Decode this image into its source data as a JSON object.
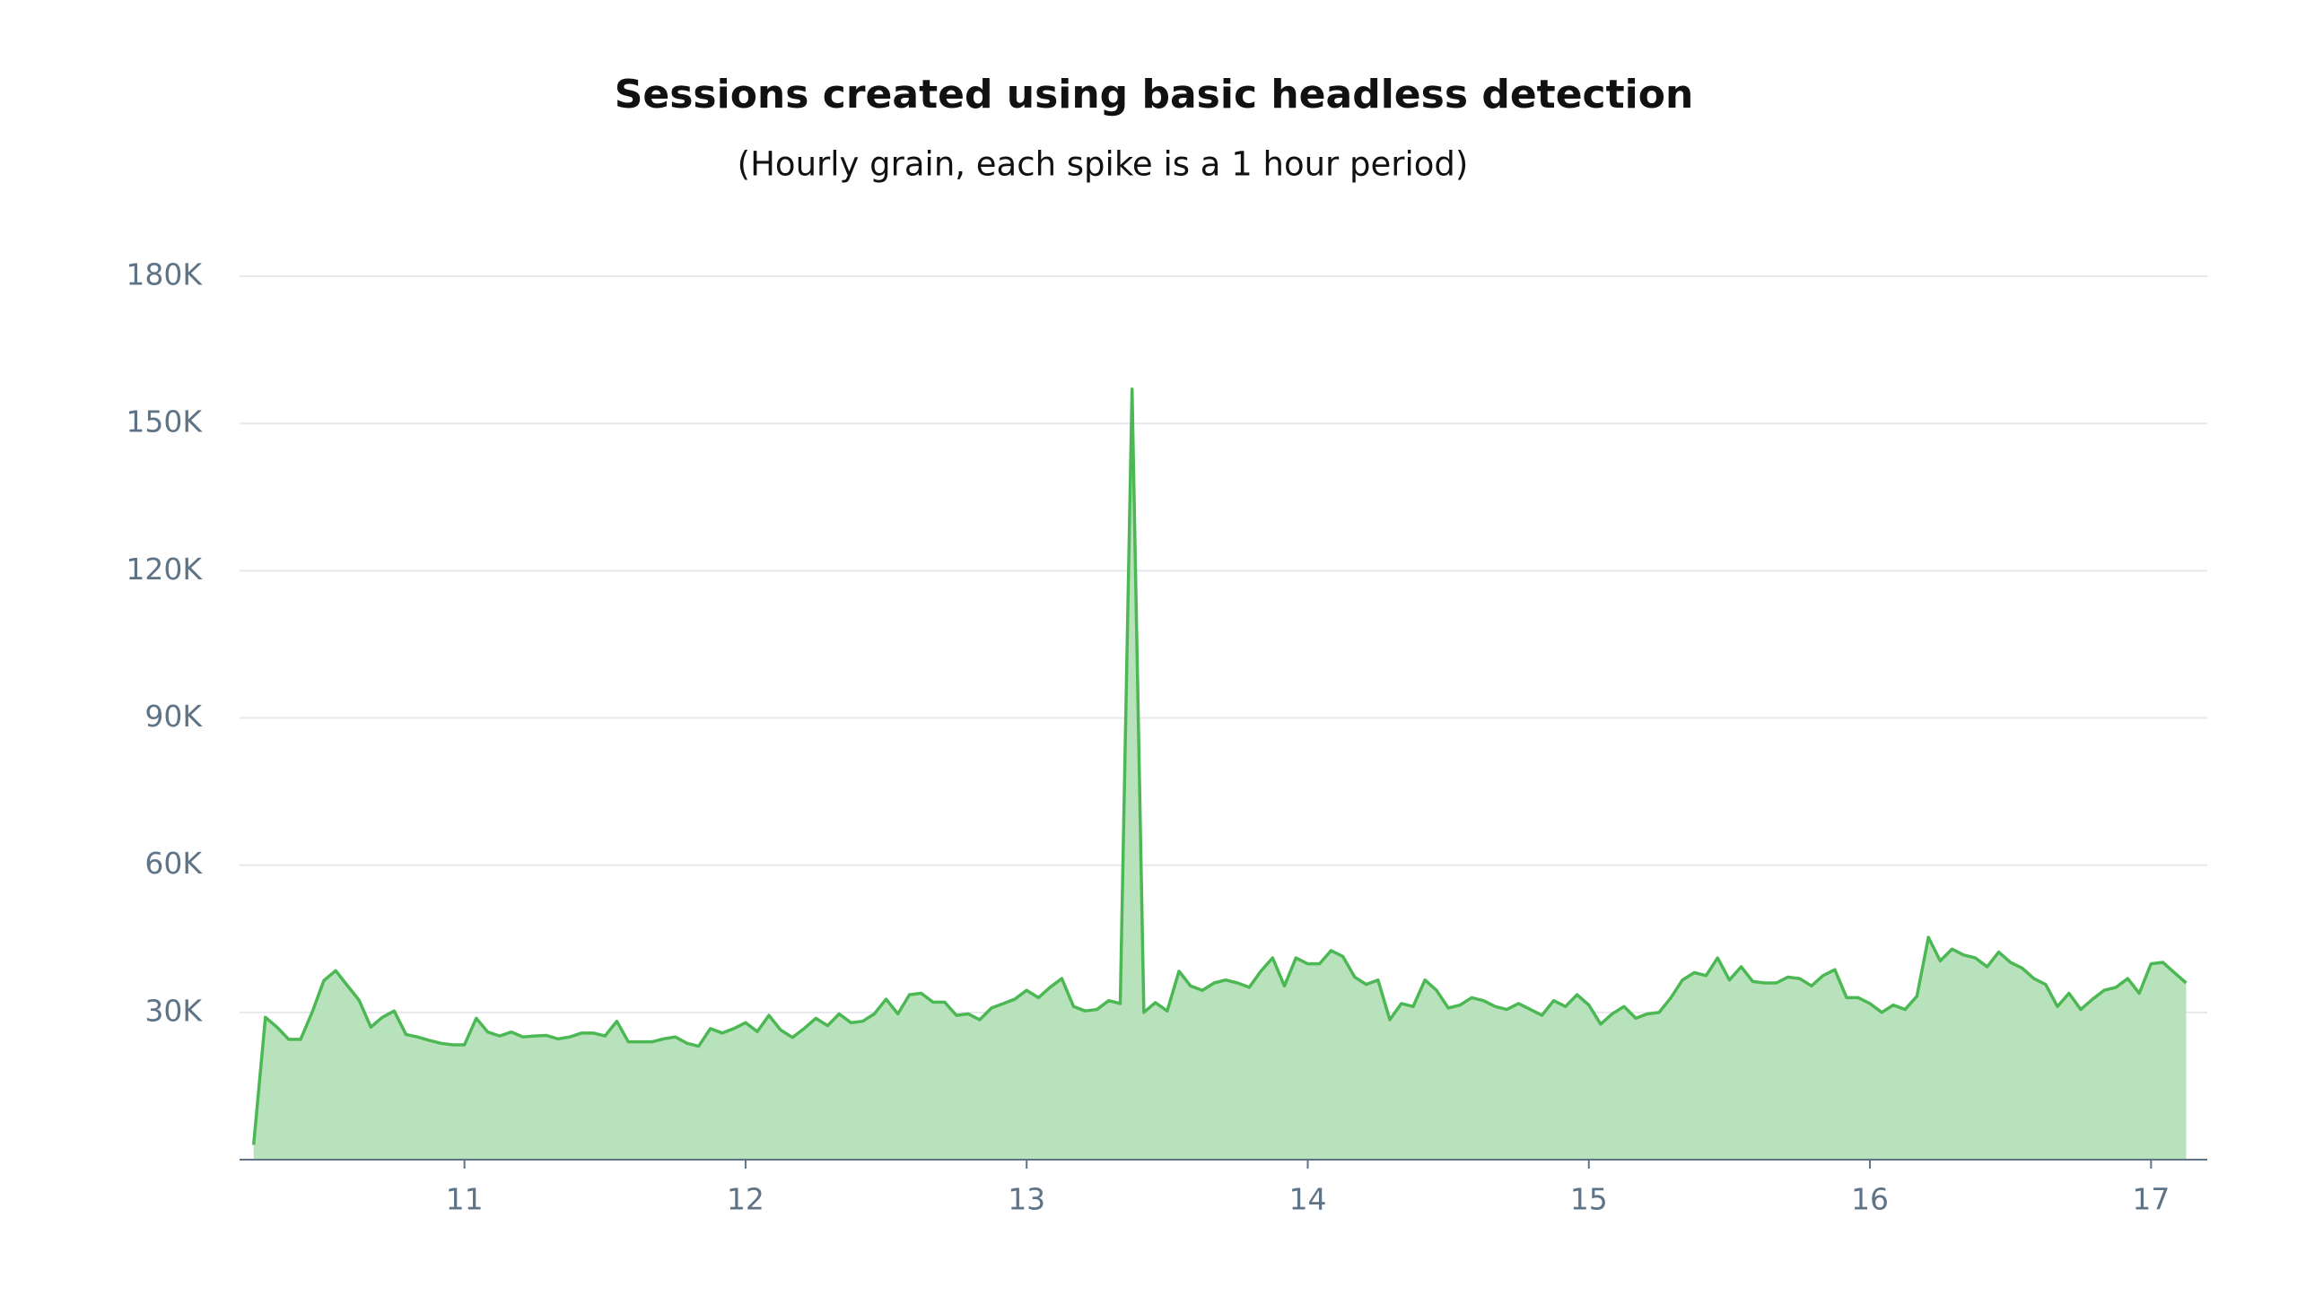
{
  "chart_data": {
    "type": "area",
    "title": "Sessions created using basic headless detection",
    "subtitle": "(Hourly grain, each spike is a 1 hour period)",
    "color": "#4cb854",
    "fill_color": "#b8e2bb",
    "grid": true,
    "xlim": [
      10.2,
      17.2
    ],
    "xticks": [
      11,
      12,
      13,
      14,
      15,
      16,
      17
    ],
    "ylim": [
      0,
      180000
    ],
    "yticks": [
      {
        "value": 30000,
        "label": "30K"
      },
      {
        "value": 60000,
        "label": "60K"
      },
      {
        "value": 90000,
        "label": "90K"
      },
      {
        "value": 120000,
        "label": "120K"
      },
      {
        "value": 150000,
        "label": "150K"
      },
      {
        "value": 180000,
        "label": "180K"
      }
    ],
    "x": [
      10.25,
      10.292,
      10.333,
      10.375,
      10.417,
      10.458,
      10.5,
      10.542,
      10.583,
      10.625,
      10.667,
      10.708,
      10.75,
      10.792,
      10.833,
      10.875,
      10.917,
      10.958,
      11,
      11.042,
      11.083,
      11.125,
      11.167,
      11.208,
      11.25,
      11.292,
      11.333,
      11.375,
      11.417,
      11.458,
      11.5,
      11.542,
      11.583,
      11.625,
      11.667,
      11.708,
      11.75,
      11.792,
      11.833,
      11.875,
      11.917,
      11.958,
      12,
      12.042,
      12.083,
      12.125,
      12.167,
      12.208,
      12.25,
      12.292,
      12.333,
      12.375,
      12.417,
      12.458,
      12.5,
      12.542,
      12.583,
      12.625,
      12.667,
      12.708,
      12.75,
      12.792,
      12.833,
      12.875,
      12.917,
      12.958,
      13,
      13.042,
      13.083,
      13.125,
      13.167,
      13.208,
      13.25,
      13.292,
      13.333,
      13.375,
      13.417,
      13.458,
      13.5,
      13.542,
      13.583,
      13.625,
      13.667,
      13.708,
      13.75,
      13.792,
      13.833,
      13.875,
      13.917,
      13.958,
      14,
      14.042,
      14.083,
      14.125,
      14.167,
      14.208,
      14.25,
      14.292,
      14.333,
      14.375,
      14.417,
      14.458,
      14.5,
      14.542,
      14.583,
      14.625,
      14.667,
      14.708,
      14.75,
      14.792,
      14.833,
      14.875,
      14.917,
      14.958,
      15,
      15.042,
      15.083,
      15.125,
      15.167,
      15.208,
      15.25,
      15.292,
      15.333,
      15.375,
      15.417,
      15.458,
      15.5,
      15.542,
      15.583,
      15.625,
      15.667,
      15.708,
      15.75,
      15.792,
      15.833,
      15.875,
      15.917,
      15.958,
      16,
      16.042,
      16.083,
      16.125,
      16.167,
      16.208,
      16.25,
      16.292,
      16.333,
      16.375,
      16.417,
      16.458,
      16.5,
      16.542,
      16.583,
      16.625,
      16.667,
      16.708,
      16.75,
      16.792,
      16.833,
      16.875,
      16.917,
      16.958,
      17,
      17.042,
      17.083,
      17.125
    ],
    "values": [
      3000,
      29000,
      27000,
      24500,
      24500,
      30000,
      36500,
      38500,
      35500,
      32500,
      27000,
      29000,
      30300,
      25500,
      25000,
      24300,
      23700,
      23400,
      23400,
      28800,
      26000,
      25200,
      26000,
      25000,
      25200,
      25300,
      24600,
      25000,
      25800,
      25800,
      25200,
      28200,
      24000,
      24000,
      24000,
      24600,
      25000,
      23700,
      23100,
      26700,
      25800,
      26700,
      27900,
      26100,
      29400,
      26400,
      24900,
      26700,
      28800,
      27300,
      29700,
      27900,
      28200,
      29700,
      32700,
      29700,
      33600,
      33900,
      32100,
      32100,
      29400,
      29700,
      28500,
      30900,
      31800,
      32700,
      34500,
      33000,
      35100,
      36900,
      31200,
      30300,
      30600,
      32400,
      31800,
      157000,
      30000,
      32000,
      30300,
      38400,
      35400,
      34500,
      36000,
      36600,
      36000,
      35100,
      38400,
      41100,
      35400,
      41100,
      39900,
      39900,
      42600,
      41400,
      37200,
      35700,
      36600,
      28500,
      31800,
      31200,
      36600,
      34500,
      30900,
      31500,
      33000,
      32400,
      31200,
      30600,
      31800,
      30600,
      29400,
      32400,
      31200,
      33600,
      31500,
      27600,
      29700,
      31200,
      28800,
      29700,
      30000,
      33000,
      36600,
      38100,
      37500,
      41100,
      36600,
      39300,
      36300,
      36000,
      36000,
      37200,
      36900,
      35400,
      37500,
      38700,
      33000,
      33000,
      31800,
      30000,
      31500,
      30600,
      33300,
      45300,
      40500,
      42900,
      41700,
      41100,
      39300,
      42300,
      40200,
      39000,
      36900,
      35700,
      31200,
      33900,
      30600,
      32700,
      34500,
      35100,
      36900,
      33900,
      39900,
      40200,
      38100,
      36000
    ]
  }
}
